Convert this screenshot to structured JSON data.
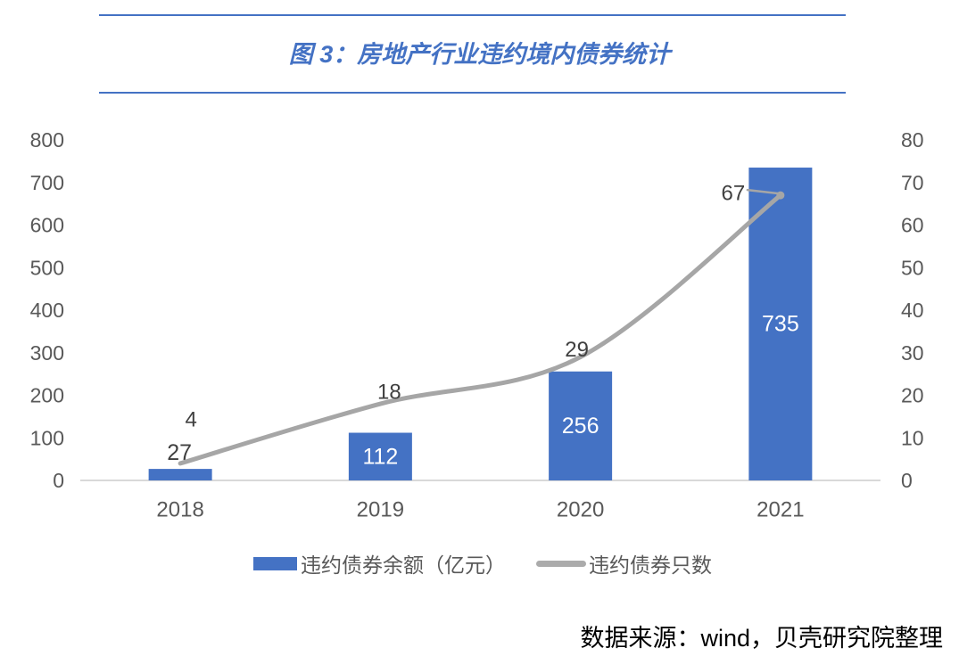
{
  "header": {
    "title": "图 3：房地产行业违约境内债券统计",
    "title_color": "#4472C4",
    "rule_color": "#4472C4"
  },
  "chart_data": {
    "type": "combo-bar-line",
    "title": "图 3：房地产行业违约境内债券统计",
    "categories": [
      "2018",
      "2019",
      "2020",
      "2021"
    ],
    "series": [
      {
        "name": "违约债券余额（亿元）",
        "chart_type": "bar",
        "axis": "left",
        "color": "#4472C4",
        "values": [
          27,
          112,
          256,
          735
        ],
        "data_label_color_inside": "#FFFFFF",
        "data_label_color_outside": "#404040"
      },
      {
        "name": "违约债券只数",
        "chart_type": "line",
        "axis": "right",
        "color": "#A6A6A6",
        "smooth": true,
        "values": [
          4,
          18,
          29,
          67
        ],
        "data_label_color": "#404040"
      }
    ],
    "left_axis": {
      "min": 0,
      "max": 800,
      "step": 100,
      "tick_labels": [
        "800",
        "700",
        "600",
        "500",
        "400",
        "300",
        "200",
        "100",
        "0"
      ],
      "label_color": "#595959"
    },
    "right_axis": {
      "min": 0,
      "max": 80,
      "step": 10,
      "tick_labels": [
        "80",
        "70",
        "60",
        "50",
        "40",
        "30",
        "20",
        "10",
        "0"
      ],
      "label_color": "#595959"
    },
    "x_axis": {
      "label_color": "#595959",
      "axis_line_color": "#D9D9D9"
    },
    "grid": false,
    "legend_position": "bottom"
  },
  "legend": {
    "items": [
      {
        "label": "违约债券余额（亿元）",
        "swatch": "bar",
        "color": "#4472C4"
      },
      {
        "label": "违约债券只数",
        "swatch": "line",
        "color": "#ABABAB"
      }
    ]
  },
  "footer": {
    "source_note": "数据来源：wind，贝壳研究院整理"
  }
}
